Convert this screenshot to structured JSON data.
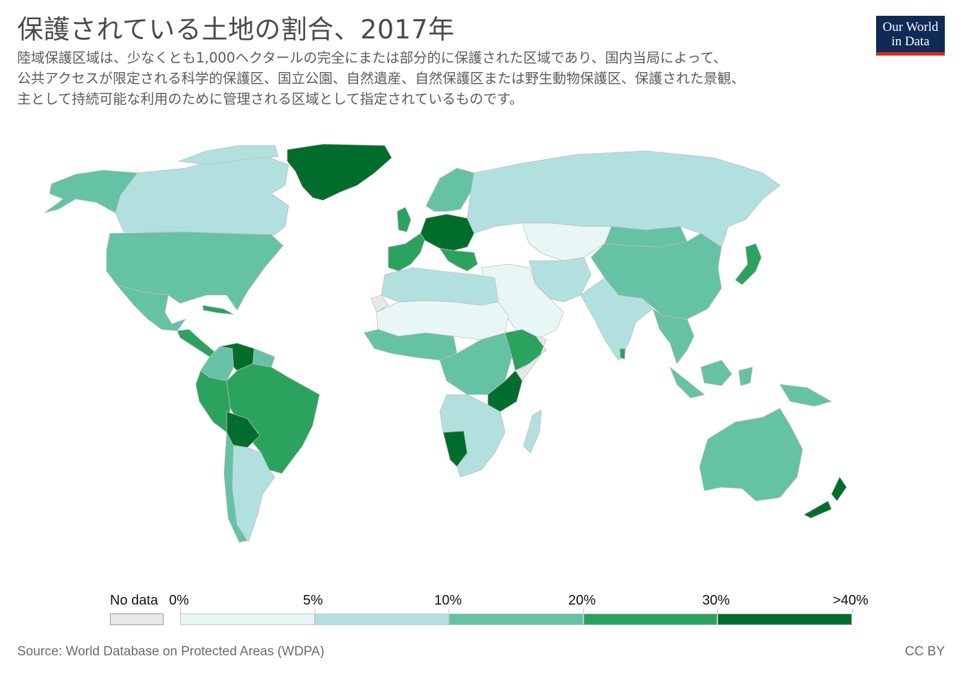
{
  "title": "保護されている土地の割合、2017年",
  "subtitle_lines": [
    "陸域保護区域は、少なくとも1,000ヘクタールの完全にまたは部分的に保護された区域であり、国内当局によって、",
    "公共アクセスが限定される科学的保護区、国立公園、自然遺産、自然保護区または野生動物保護区、保護された景観、",
    "主として持続可能な利用のために管理される区域として指定されているものです。"
  ],
  "logo": {
    "line1": "Our World",
    "line2": "in Data",
    "bg_color": "#0f2a55",
    "bar_color": "#d42b21"
  },
  "legend": {
    "no_data_label": "No data",
    "no_data_color": "#e8e8e8",
    "bins": [
      {
        "label_left": "0%",
        "color": "#e9f6f6"
      },
      {
        "label_left": "5%",
        "color": "#b1e0df"
      },
      {
        "label_left": "10%",
        "color": "#66c2a5"
      },
      {
        "label_left": "20%",
        "color": "#2ca25f"
      },
      {
        "label_left": "30%",
        "color": "#006d2c"
      }
    ],
    "last_label": ">40%"
  },
  "regions": [
    {
      "name": "Greenland",
      "bin": 4
    },
    {
      "name": "Alaska",
      "bin": 2
    },
    {
      "name": "Canada",
      "bin": 1
    },
    {
      "name": "USA",
      "bin": 2
    },
    {
      "name": "Mexico",
      "bin": 2
    },
    {
      "name": "Central America",
      "bin": 3
    },
    {
      "name": "Venezuela",
      "bin": 4
    },
    {
      "name": "Colombia",
      "bin": 2
    },
    {
      "name": "Brazil",
      "bin": 3
    },
    {
      "name": "Peru",
      "bin": 3
    },
    {
      "name": "Bolivia",
      "bin": 4
    },
    {
      "name": "Argentina",
      "bin": 1
    },
    {
      "name": "Chile",
      "bin": 2
    },
    {
      "name": "Western Europe",
      "bin": 3
    },
    {
      "name": "Central Europe",
      "bin": 4
    },
    {
      "name": "Scandinavia",
      "bin": 2
    },
    {
      "name": "Russia",
      "bin": 1
    },
    {
      "name": "Kazakhstan",
      "bin": 0
    },
    {
      "name": "China",
      "bin": 2
    },
    {
      "name": "Mongolia",
      "bin": 2
    },
    {
      "name": "India",
      "bin": 1
    },
    {
      "name": "Middle East",
      "bin": 0
    },
    {
      "name": "Iran",
      "bin": 1
    },
    {
      "name": "Japan",
      "bin": 3
    },
    {
      "name": "Southeast Asia",
      "bin": 2
    },
    {
      "name": "Indonesia",
      "bin": 2
    },
    {
      "name": "Australia",
      "bin": 2
    },
    {
      "name": "New Zealand",
      "bin": 4
    },
    {
      "name": "North Africa",
      "bin": 1
    },
    {
      "name": "Sahara",
      "bin": 0
    },
    {
      "name": "West Africa",
      "bin": 2
    },
    {
      "name": "Central Africa",
      "bin": 2
    },
    {
      "name": "East Africa",
      "bin": 3
    },
    {
      "name": "Tanzania",
      "bin": 4
    },
    {
      "name": "Namibia",
      "bin": 4
    },
    {
      "name": "Southern Africa",
      "bin": 1
    },
    {
      "name": "Madagascar",
      "bin": 1
    },
    {
      "name": "Western Sahara",
      "bin": -1
    },
    {
      "name": "Somalia",
      "bin": -1
    }
  ],
  "source": "Source: World Database on Protected Areas (WDPA)",
  "license": "CC BY"
}
